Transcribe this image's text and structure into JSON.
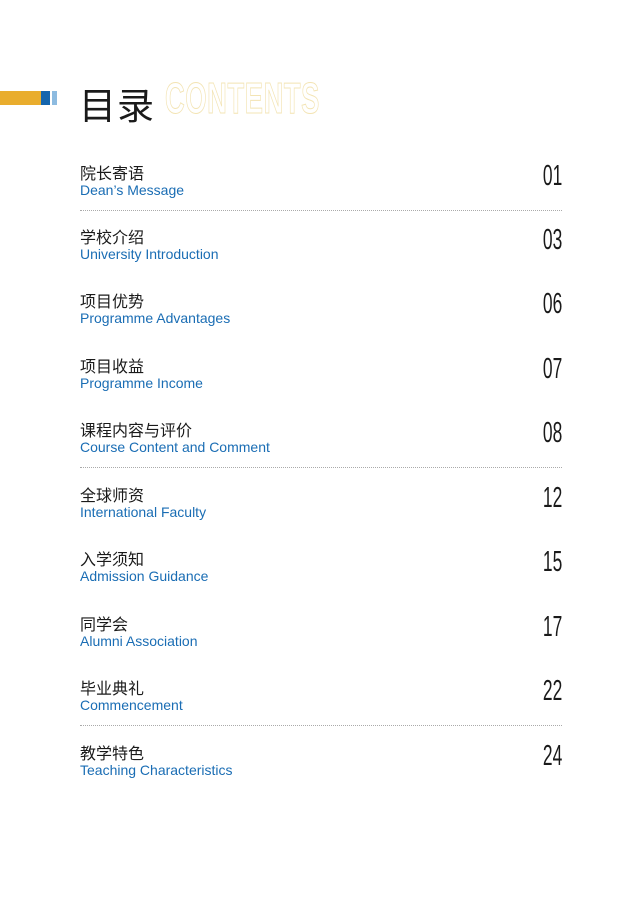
{
  "header": {
    "title_cn": "目录",
    "title_en": "CONTENTS"
  },
  "colors": {
    "accent_orange": "#e9ad2e",
    "accent_blue": "#1565ad",
    "english_text": "#1a6db4"
  },
  "items": [
    {
      "cn": "院长寄语",
      "en": "Dean’s Message",
      "page": "01"
    },
    {
      "cn": "学校介绍",
      "en": "University Introduction",
      "page": "03"
    },
    {
      "cn": "项目优势",
      "en": "Programme Advantages",
      "page": "06"
    },
    {
      "cn": "项目收益",
      "en": "Programme Income",
      "page": "07"
    },
    {
      "cn": "课程内容与评价",
      "en": "Course Content and Comment",
      "page": "08"
    },
    {
      "cn": "全球师资",
      "en": "International Faculty",
      "page": "12"
    },
    {
      "cn": "入学须知",
      "en": "Admission Guidance",
      "page": "15"
    },
    {
      "cn": "同学会",
      "en": "Alumni Association",
      "page": "17"
    },
    {
      "cn": "毕业典礼",
      "en": "Commencement",
      "page": "22"
    },
    {
      "cn": "教学特色",
      "en": "Teaching Characteristics",
      "page": "24"
    }
  ]
}
